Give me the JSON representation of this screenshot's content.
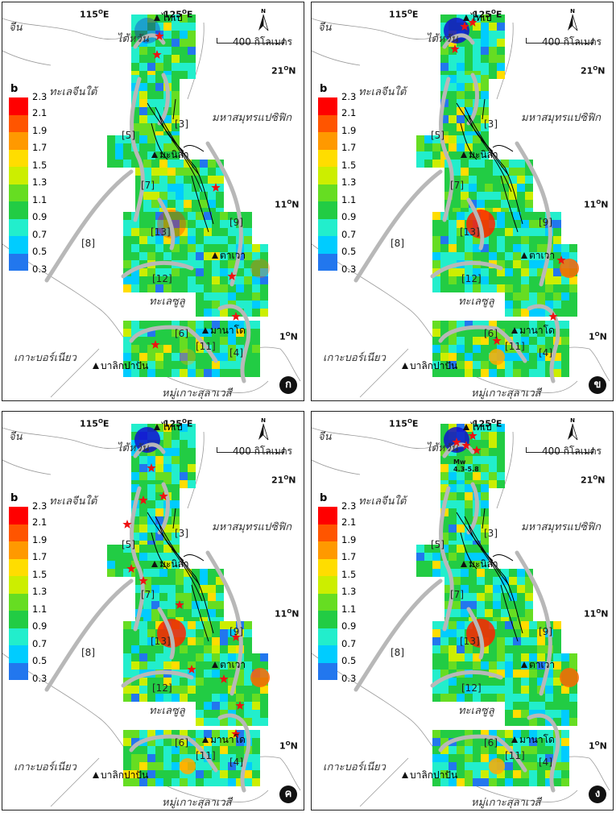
{
  "legend": {
    "title": "b",
    "ticks": [
      "2.3",
      "2.1",
      "1.9",
      "1.7",
      "1.5",
      "1.3",
      "1.1",
      "0.9",
      "0.7",
      "0.5",
      "0.3"
    ],
    "colors": [
      "#ff0000",
      "#ff5500",
      "#ff9900",
      "#ffdd00",
      "#ccee00",
      "#66dd22",
      "#22cc44",
      "#22eecc",
      "#00ccff",
      "#2277ee",
      "#1111cc"
    ]
  },
  "coords": {
    "lon1": "115",
    "lon2": "125",
    "lat21": "21",
    "lat11": "11",
    "lat1": "1",
    "deg": "O",
    "east": "E",
    "north": "N"
  },
  "scale": "400 กิโลเมตร",
  "north_letter": "N",
  "regions": {
    "china": "จีน",
    "taiwan": "ไต้หวัน",
    "scs": "ทะเลจีนใต้",
    "pacific": "มหาสมุทรแปซิฟิก",
    "sulu": "ทะเลซูลู",
    "borneo": "เกาะบอร์เนียว",
    "sulawesi": "หมู่เกาะสุลาเวสี"
  },
  "cities": {
    "taipei": "ไทเป",
    "manila": "มะนิลา",
    "tacloban": "ตาเวา",
    "manado": "มานาโด",
    "balikpapan": "บาลิกปาปัน"
  },
  "faults": {
    "f3": "[3]",
    "f5": "[5]",
    "f7": "[7]",
    "f8": "[8]",
    "f9": "[9]",
    "f13": "[13]",
    "f12": "[12]",
    "f6": "[6]",
    "f11": "[11]",
    "f4": "[4]"
  },
  "panels": [
    {
      "badge": "ก"
    },
    {
      "badge": "ข"
    },
    {
      "badge": "ค"
    },
    {
      "badge": "ง",
      "mw_label": "Mw",
      "mw_range": "4.3-5.8"
    }
  ]
}
